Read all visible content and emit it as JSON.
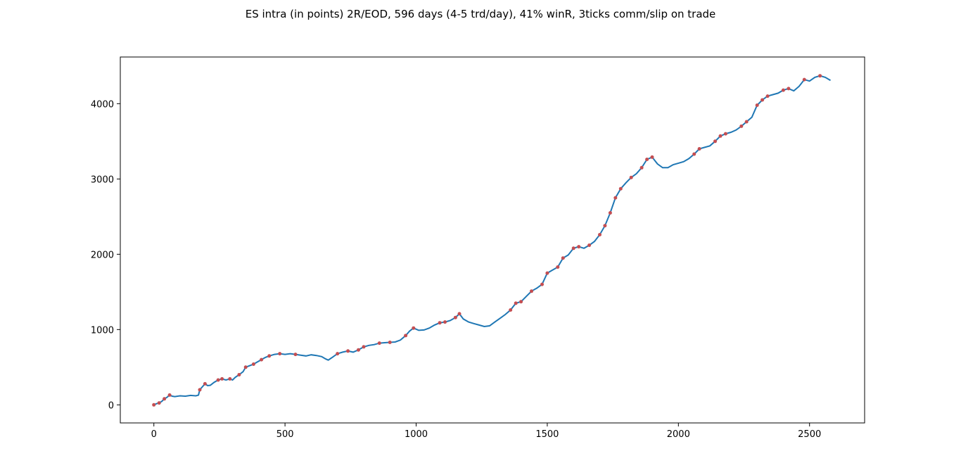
{
  "chart_data": {
    "type": "line",
    "title": "ES intra (in points) 2R/EOD, 596 days (4-5 trd/day), 41% winR, 3ticks comm/slip on trade",
    "xlabel": "",
    "ylabel": "",
    "xlim": [
      -128,
      2710
    ],
    "ylim": [
      -240,
      4620
    ],
    "xticks": [
      0,
      500,
      1000,
      1500,
      2000,
      2500
    ],
    "yticks": [
      0,
      1000,
      2000,
      3000,
      4000
    ],
    "grid": false,
    "legend": "none",
    "colors": {
      "line": "#1f77b4",
      "marker": "#c44e52"
    },
    "series": [
      {
        "values_xy": [
          [
            0,
            0
          ],
          [
            10,
            15
          ],
          [
            20,
            25
          ],
          [
            30,
            45
          ],
          [
            40,
            80
          ],
          [
            50,
            100
          ],
          [
            60,
            130
          ],
          [
            70,
            115
          ],
          [
            80,
            110
          ],
          [
            100,
            120
          ],
          [
            120,
            115
          ],
          [
            140,
            125
          ],
          [
            160,
            120
          ],
          [
            170,
            130
          ],
          [
            175,
            200
          ],
          [
            185,
            240
          ],
          [
            195,
            280
          ],
          [
            205,
            255
          ],
          [
            215,
            260
          ],
          [
            230,
            300
          ],
          [
            245,
            330
          ],
          [
            260,
            345
          ],
          [
            275,
            330
          ],
          [
            290,
            345
          ],
          [
            300,
            330
          ],
          [
            310,
            365
          ],
          [
            325,
            400
          ],
          [
            340,
            440
          ],
          [
            350,
            500
          ],
          [
            365,
            520
          ],
          [
            380,
            540
          ],
          [
            395,
            570
          ],
          [
            410,
            600
          ],
          [
            425,
            630
          ],
          [
            440,
            650
          ],
          [
            460,
            670
          ],
          [
            480,
            680
          ],
          [
            500,
            670
          ],
          [
            520,
            680
          ],
          [
            540,
            670
          ],
          [
            560,
            660
          ],
          [
            580,
            650
          ],
          [
            600,
            665
          ],
          [
            620,
            655
          ],
          [
            640,
            640
          ],
          [
            655,
            610
          ],
          [
            665,
            595
          ],
          [
            680,
            630
          ],
          [
            700,
            680
          ],
          [
            720,
            700
          ],
          [
            740,
            715
          ],
          [
            760,
            700
          ],
          [
            780,
            730
          ],
          [
            800,
            770
          ],
          [
            820,
            790
          ],
          [
            840,
            800
          ],
          [
            860,
            820
          ],
          [
            880,
            825
          ],
          [
            900,
            830
          ],
          [
            920,
            835
          ],
          [
            940,
            860
          ],
          [
            960,
            920
          ],
          [
            975,
            980
          ],
          [
            990,
            1020
          ],
          [
            1010,
            990
          ],
          [
            1030,
            995
          ],
          [
            1050,
            1020
          ],
          [
            1070,
            1060
          ],
          [
            1090,
            1090
          ],
          [
            1110,
            1100
          ],
          [
            1130,
            1120
          ],
          [
            1150,
            1160
          ],
          [
            1165,
            1210
          ],
          [
            1180,
            1140
          ],
          [
            1200,
            1100
          ],
          [
            1220,
            1080
          ],
          [
            1240,
            1060
          ],
          [
            1260,
            1040
          ],
          [
            1280,
            1050
          ],
          [
            1300,
            1100
          ],
          [
            1320,
            1150
          ],
          [
            1340,
            1200
          ],
          [
            1360,
            1260
          ],
          [
            1380,
            1350
          ],
          [
            1400,
            1370
          ],
          [
            1420,
            1440
          ],
          [
            1440,
            1510
          ],
          [
            1460,
            1550
          ],
          [
            1480,
            1600
          ],
          [
            1500,
            1750
          ],
          [
            1520,
            1790
          ],
          [
            1540,
            1830
          ],
          [
            1560,
            1950
          ],
          [
            1580,
            1990
          ],
          [
            1600,
            2080
          ],
          [
            1620,
            2100
          ],
          [
            1640,
            2080
          ],
          [
            1660,
            2120
          ],
          [
            1680,
            2170
          ],
          [
            1700,
            2260
          ],
          [
            1720,
            2380
          ],
          [
            1740,
            2550
          ],
          [
            1760,
            2750
          ],
          [
            1780,
            2870
          ],
          [
            1800,
            2950
          ],
          [
            1820,
            3020
          ],
          [
            1840,
            3070
          ],
          [
            1860,
            3150
          ],
          [
            1880,
            3260
          ],
          [
            1900,
            3290
          ],
          [
            1920,
            3200
          ],
          [
            1940,
            3150
          ],
          [
            1960,
            3150
          ],
          [
            1980,
            3190
          ],
          [
            2000,
            3210
          ],
          [
            2020,
            3230
          ],
          [
            2040,
            3270
          ],
          [
            2060,
            3330
          ],
          [
            2080,
            3400
          ],
          [
            2100,
            3420
          ],
          [
            2120,
            3440
          ],
          [
            2140,
            3500
          ],
          [
            2160,
            3570
          ],
          [
            2180,
            3600
          ],
          [
            2200,
            3620
          ],
          [
            2220,
            3650
          ],
          [
            2240,
            3700
          ],
          [
            2260,
            3760
          ],
          [
            2280,
            3820
          ],
          [
            2300,
            3980
          ],
          [
            2320,
            4050
          ],
          [
            2340,
            4100
          ],
          [
            2360,
            4120
          ],
          [
            2380,
            4140
          ],
          [
            2400,
            4180
          ],
          [
            2420,
            4200
          ],
          [
            2440,
            4170
          ],
          [
            2460,
            4230
          ],
          [
            2480,
            4320
          ],
          [
            2500,
            4300
          ],
          [
            2520,
            4350
          ],
          [
            2540,
            4370
          ],
          [
            2560,
            4350
          ],
          [
            2580,
            4310
          ]
        ],
        "markers_xy": [
          [
            0,
            0
          ],
          [
            20,
            25
          ],
          [
            40,
            80
          ],
          [
            60,
            130
          ],
          [
            175,
            200
          ],
          [
            195,
            280
          ],
          [
            245,
            330
          ],
          [
            260,
            345
          ],
          [
            290,
            345
          ],
          [
            325,
            400
          ],
          [
            350,
            500
          ],
          [
            380,
            540
          ],
          [
            410,
            600
          ],
          [
            440,
            650
          ],
          [
            480,
            680
          ],
          [
            540,
            670
          ],
          [
            700,
            680
          ],
          [
            740,
            715
          ],
          [
            780,
            730
          ],
          [
            800,
            770
          ],
          [
            860,
            820
          ],
          [
            900,
            830
          ],
          [
            960,
            920
          ],
          [
            990,
            1020
          ],
          [
            1090,
            1090
          ],
          [
            1110,
            1100
          ],
          [
            1150,
            1160
          ],
          [
            1165,
            1210
          ],
          [
            1360,
            1260
          ],
          [
            1380,
            1350
          ],
          [
            1400,
            1370
          ],
          [
            1440,
            1510
          ],
          [
            1480,
            1600
          ],
          [
            1500,
            1750
          ],
          [
            1540,
            1830
          ],
          [
            1560,
            1950
          ],
          [
            1600,
            2080
          ],
          [
            1620,
            2100
          ],
          [
            1660,
            2120
          ],
          [
            1700,
            2260
          ],
          [
            1720,
            2380
          ],
          [
            1740,
            2550
          ],
          [
            1760,
            2750
          ],
          [
            1780,
            2870
          ],
          [
            1820,
            3020
          ],
          [
            1860,
            3150
          ],
          [
            1880,
            3260
          ],
          [
            1900,
            3290
          ],
          [
            2060,
            3330
          ],
          [
            2080,
            3400
          ],
          [
            2140,
            3500
          ],
          [
            2160,
            3570
          ],
          [
            2180,
            3600
          ],
          [
            2240,
            3700
          ],
          [
            2260,
            3760
          ],
          [
            2300,
            3980
          ],
          [
            2320,
            4050
          ],
          [
            2340,
            4100
          ],
          [
            2400,
            4180
          ],
          [
            2420,
            4200
          ],
          [
            2480,
            4320
          ],
          [
            2540,
            4370
          ]
        ]
      }
    ]
  }
}
